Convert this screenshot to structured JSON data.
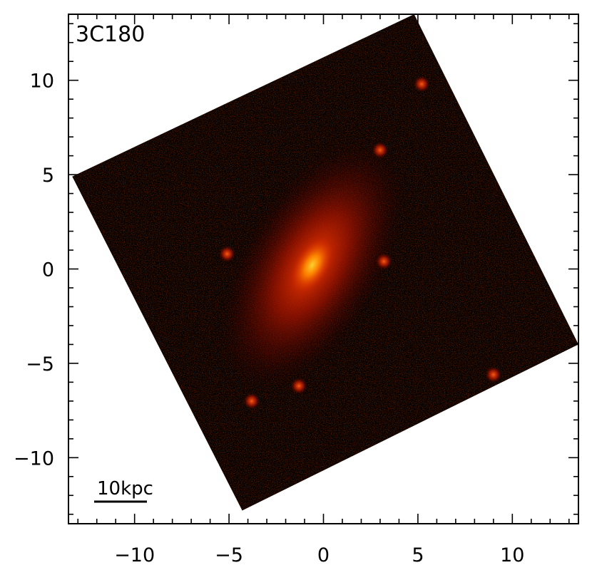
{
  "panel_label": "3C180",
  "scale_bar": {
    "label": "10kpc",
    "length_kpc": 10
  },
  "axes": {
    "x": {
      "range": [
        -13.5,
        13.5
      ],
      "major_ticks": [
        -10,
        -5,
        0,
        5,
        10
      ],
      "tick_labels": [
        "−10",
        "−5",
        "0",
        "5",
        "10"
      ],
      "minor_step": 1
    },
    "y": {
      "range": [
        -13.5,
        13.5
      ],
      "major_ticks": [
        10,
        5,
        0,
        -5,
        -10
      ],
      "tick_labels": [
        "10",
        "5",
        "0",
        "−5",
        "−10"
      ],
      "minor_step": 1
    }
  },
  "colors": {
    "background": "#000000",
    "core": "#ffc000",
    "halo": "#b01800",
    "noise": "#7a0a00"
  },
  "image_field_corners": [
    [
      -13.3,
      4.9
    ],
    [
      4.8,
      13.5
    ],
    [
      13.5,
      -4.0
    ],
    [
      -4.3,
      -12.8
    ]
  ],
  "galaxy": {
    "center": [
      -0.6,
      0.2
    ],
    "major_axis_angle_deg": 60
  },
  "point_sources": [
    {
      "x": 3.0,
      "y": 6.3
    },
    {
      "x": -5.1,
      "y": 0.8
    },
    {
      "x": -1.3,
      "y": -6.2
    },
    {
      "x": -3.8,
      "y": -7.0
    },
    {
      "x": 9.0,
      "y": -5.6
    },
    {
      "x": 5.2,
      "y": 9.8
    },
    {
      "x": 3.2,
      "y": 0.4
    }
  ]
}
